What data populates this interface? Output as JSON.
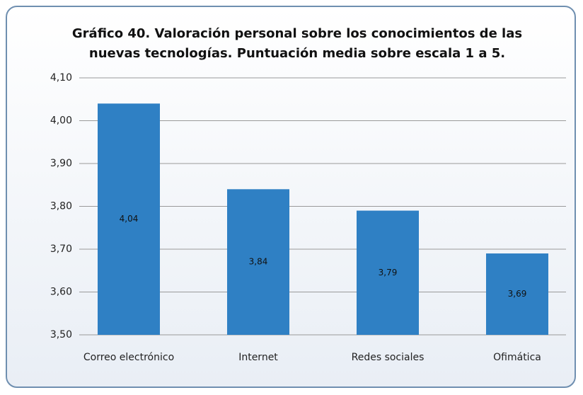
{
  "chart_data": {
    "type": "bar",
    "title": "Gráfico 40. Valoración personal sobre los conocimientos de las nuevas tecnologías. Puntuación media sobre escala 1 a 5.",
    "categories": [
      "Correo electrónico",
      "Internet",
      "Redes sociales",
      "Ofimática"
    ],
    "values": [
      4.04,
      3.84,
      3.79,
      3.69
    ],
    "value_labels": [
      "4,04",
      "3,84",
      "3,79",
      "3,69"
    ],
    "color": "#2f80c4",
    "ylim": [
      3.5,
      4.1
    ],
    "yticks": [
      {
        "value": 3.5,
        "label": "3,50"
      },
      {
        "value": 3.6,
        "label": "3,60"
      },
      {
        "value": 3.7,
        "label": "3,70"
      },
      {
        "value": 3.8,
        "label": "3,80"
      },
      {
        "value": 3.9,
        "label": "3,90"
      },
      {
        "value": 4.0,
        "label": "4,00"
      },
      {
        "value": 4.1,
        "label": "4,10"
      }
    ],
    "grid": true
  }
}
